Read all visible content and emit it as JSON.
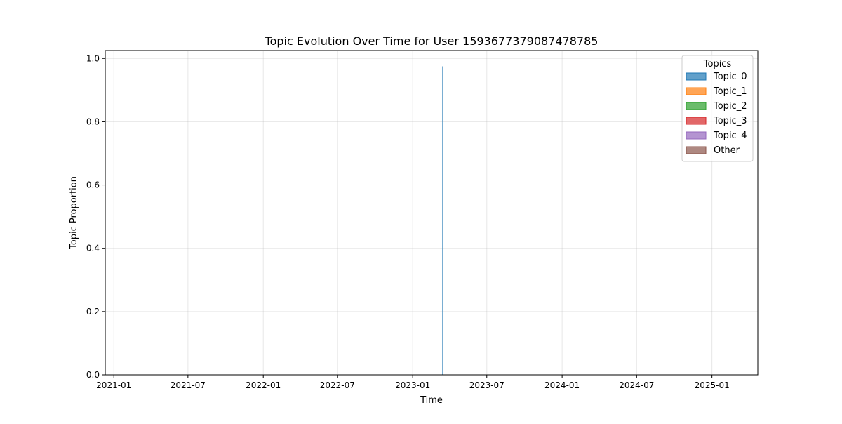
{
  "chart_data": {
    "type": "area",
    "stacked": true,
    "title": "Topic Evolution Over Time for User 1593677379087478785",
    "xlabel": "Time",
    "ylabel": "Topic Proportion",
    "x_axis_type": "date",
    "xlim": [
      "2020-12-11",
      "2025-04-23"
    ],
    "ylim": [
      0,
      1.025
    ],
    "x_ticks": [
      "2021-01",
      "2021-07",
      "2022-01",
      "2022-07",
      "2023-01",
      "2023-07",
      "2024-01",
      "2024-07",
      "2025-01"
    ],
    "y_ticks": [
      "0.0",
      "0.2",
      "0.4",
      "0.6",
      "0.8",
      "1.0"
    ],
    "grid": true,
    "legend": {
      "title": "Topics",
      "placement": "top-right"
    },
    "x": [
      "2023-03-15"
    ],
    "series": [
      {
        "name": "Topic_0",
        "color": "#1f77b4",
        "values": [
          0.975
        ]
      },
      {
        "name": "Topic_1",
        "color": "#ff7f0e",
        "values": [
          0.0
        ]
      },
      {
        "name": "Topic_2",
        "color": "#2ca02c",
        "values": [
          0.0
        ]
      },
      {
        "name": "Topic_3",
        "color": "#d62728",
        "values": [
          0.0
        ]
      },
      {
        "name": "Topic_4",
        "color": "#9467bd",
        "values": [
          0.0
        ]
      },
      {
        "name": "Other",
        "color": "#8c564b",
        "values": [
          0.0
        ]
      }
    ]
  }
}
